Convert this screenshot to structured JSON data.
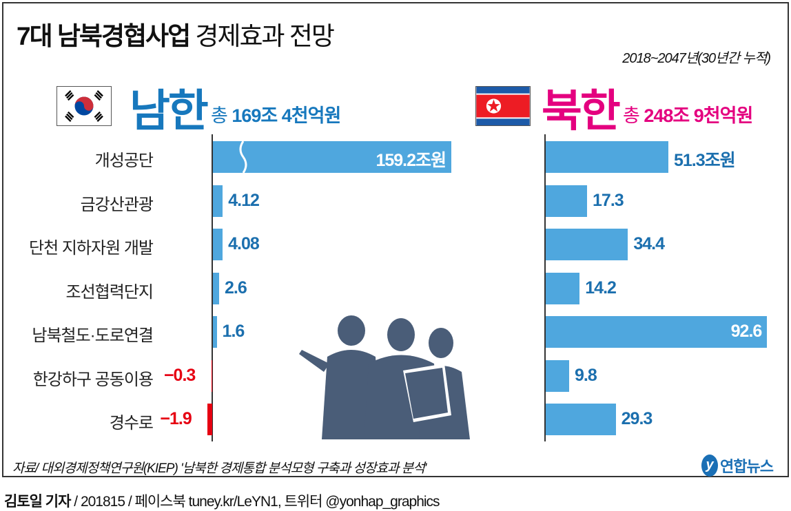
{
  "title_bold": "7대 남북경협사업",
  "title_light": "경제효과 전망",
  "period": "2018~2047년(30년간 누적)",
  "source": "자료/ 대외경제정책연구원(KIEP) '남북한 경제통합 분석모형 구축과 성장효과 분석'",
  "logo": "연합뉴스",
  "credit": {
    "author": "김토일 기자",
    "rest": " / 201815 / 페이스북 tuney.kr/LeYN1, 트위터 @yonhap_graphics"
  },
  "colors": {
    "bar": "#4fa7de",
    "south": "#1778bd",
    "north": "#e4007f",
    "value": "#1b6fae",
    "negative": "#e60012"
  },
  "chart_data": {
    "type": "bar",
    "orientation": "horizontal",
    "unit": "조원",
    "categories": [
      "개성공단",
      "금강산관광",
      "단천 지하자원 개발",
      "조선협력단지",
      "남북철도·도로연결",
      "한강하구 공동이용",
      "경수로"
    ],
    "series": [
      {
        "name": "남한",
        "total_label": "총",
        "total_value": "169조 4천억원",
        "values": [
          159.2,
          4.12,
          4.08,
          2.6,
          1.6,
          -0.3,
          -1.9
        ],
        "labels": [
          "159.2조원",
          "4.12",
          "4.08",
          "2.6",
          "1.6",
          "−0.3",
          "−1.9"
        ]
      },
      {
        "name": "북한",
        "total_label": "총",
        "total_value": "248조 9천억원",
        "values": [
          51.3,
          17.3,
          34.4,
          14.2,
          92.6,
          9.8,
          29.3
        ],
        "labels": [
          "51.3조원",
          "17.3",
          "34.4",
          "14.2",
          "92.6",
          "9.8",
          "29.3"
        ]
      }
    ],
    "axis_break": {
      "series": "남한",
      "category": "개성공단"
    }
  }
}
